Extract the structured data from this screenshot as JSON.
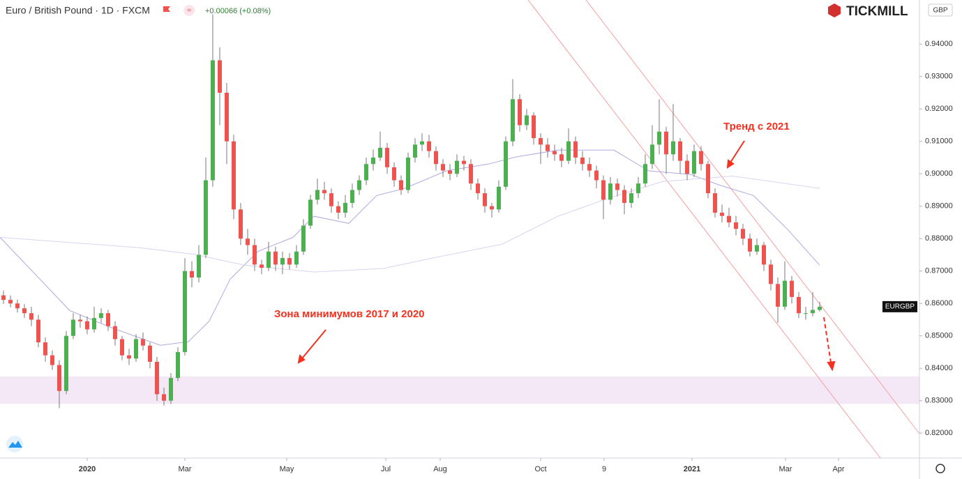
{
  "chart_data": {
    "type": "candlestick",
    "title": "Euro / British Pound · 1D · FXCM",
    "change": "+0.00066 (+0.08%)",
    "brand": "TICKMILL",
    "currency": "GBP",
    "symbol": "EURGBP",
    "annotations": [
      "Тренд с 2021",
      "Зона минимумов 2017 и 2020"
    ],
    "up_color": "#4caf50",
    "down_color": "#ef5350",
    "xlim": [
      -0.5,
      131.3
    ],
    "xticks": [
      {
        "value": 12,
        "label": "2020"
      },
      {
        "value": 26,
        "label": "Mar"
      },
      {
        "value": 40.6,
        "label": "May"
      },
      {
        "value": 54.8,
        "label": "Jul"
      },
      {
        "value": 62.6,
        "label": "Aug"
      },
      {
        "value": 77,
        "label": "Oct"
      },
      {
        "value": 86.1,
        "label": "9"
      },
      {
        "value": 98.7,
        "label": "2021"
      },
      {
        "value": 112.1,
        "label": "Mar"
      },
      {
        "value": 119.7,
        "label": "Apr"
      }
    ],
    "ylim": [
      0.8123,
      0.9536
    ],
    "yticks": [
      {
        "value": 0.82,
        "label": "0.82000"
      },
      {
        "value": 0.83,
        "label": "0.83000"
      },
      {
        "value": 0.84,
        "label": "0.84000"
      },
      {
        "value": 0.85,
        "label": "0.85000"
      },
      {
        "value": 0.86,
        "label": "0.86000"
      },
      {
        "value": 0.87,
        "label": "0.87000"
      },
      {
        "value": 0.88,
        "label": "0.88000"
      },
      {
        "value": 0.89,
        "label": "0.89000"
      },
      {
        "value": 0.9,
        "label": "0.90000"
      },
      {
        "value": 0.91,
        "label": "0.91000"
      },
      {
        "value": 0.92,
        "label": "0.92000"
      },
      {
        "value": 0.93,
        "label": "0.93000"
      },
      {
        "value": 0.94,
        "label": "0.94000"
      }
    ],
    "zone": {
      "low": 0.829,
      "high": 0.8375,
      "color": "#f3e5f5"
    },
    "ohlc": [
      [
        0.8625,
        0.864,
        0.8598,
        0.8611
      ],
      [
        0.8611,
        0.8625,
        0.8588,
        0.86
      ],
      [
        0.86,
        0.8612,
        0.8572,
        0.8585
      ],
      [
        0.8585,
        0.8598,
        0.8555,
        0.857
      ],
      [
        0.857,
        0.859,
        0.853,
        0.855
      ],
      [
        0.855,
        0.8565,
        0.8465,
        0.848
      ],
      [
        0.848,
        0.8495,
        0.842,
        0.844
      ],
      [
        0.844,
        0.8455,
        0.8395,
        0.841
      ],
      [
        0.841,
        0.8425,
        0.8277,
        0.833
      ],
      [
        0.833,
        0.8515,
        0.832,
        0.85
      ],
      [
        0.85,
        0.857,
        0.849,
        0.855
      ],
      [
        0.855,
        0.8565,
        0.8525,
        0.8545
      ],
      [
        0.8545,
        0.856,
        0.8505,
        0.852
      ],
      [
        0.852,
        0.859,
        0.851,
        0.8555
      ],
      [
        0.8555,
        0.8585,
        0.854,
        0.857
      ],
      [
        0.857,
        0.858,
        0.8515,
        0.853
      ],
      [
        0.853,
        0.8545,
        0.847,
        0.849
      ],
      [
        0.849,
        0.85,
        0.8425,
        0.844
      ],
      [
        0.844,
        0.846,
        0.841,
        0.843
      ],
      [
        0.843,
        0.8505,
        0.842,
        0.849
      ],
      [
        0.849,
        0.851,
        0.8455,
        0.847
      ],
      [
        0.847,
        0.848,
        0.84,
        0.842
      ],
      [
        0.842,
        0.8435,
        0.83,
        0.832
      ],
      [
        0.832,
        0.834,
        0.8285,
        0.83
      ],
      [
        0.83,
        0.8385,
        0.829,
        0.837
      ],
      [
        0.837,
        0.8465,
        0.836,
        0.845
      ],
      [
        0.845,
        0.874,
        0.844,
        0.87
      ],
      [
        0.87,
        0.873,
        0.865,
        0.868
      ],
      [
        0.868,
        0.878,
        0.8665,
        0.875
      ],
      [
        0.875,
        0.905,
        0.874,
        0.898
      ],
      [
        0.898,
        0.9492,
        0.896,
        0.935
      ],
      [
        0.935,
        0.939,
        0.915,
        0.925
      ],
      [
        0.925,
        0.928,
        0.903,
        0.91
      ],
      [
        0.91,
        0.912,
        0.886,
        0.889
      ],
      [
        0.889,
        0.891,
        0.878,
        0.88
      ],
      [
        0.88,
        0.883,
        0.875,
        0.878
      ],
      [
        0.878,
        0.88,
        0.87,
        0.872
      ],
      [
        0.872,
        0.8735,
        0.869,
        0.871
      ],
      [
        0.871,
        0.879,
        0.87,
        0.876
      ],
      [
        0.876,
        0.8775,
        0.87,
        0.872
      ],
      [
        0.872,
        0.876,
        0.869,
        0.874
      ],
      [
        0.874,
        0.8755,
        0.8705,
        0.872
      ],
      [
        0.872,
        0.878,
        0.871,
        0.876
      ],
      [
        0.876,
        0.886,
        0.875,
        0.884
      ],
      [
        0.884,
        0.8935,
        0.883,
        0.892
      ],
      [
        0.892,
        0.8985,
        0.8905,
        0.895
      ],
      [
        0.895,
        0.8975,
        0.892,
        0.894
      ],
      [
        0.894,
        0.8955,
        0.888,
        0.89
      ],
      [
        0.89,
        0.8915,
        0.886,
        0.888
      ],
      [
        0.888,
        0.8935,
        0.8865,
        0.891
      ],
      [
        0.891,
        0.897,
        0.8895,
        0.895
      ],
      [
        0.895,
        0.8995,
        0.8935,
        0.898
      ],
      [
        0.898,
        0.905,
        0.8965,
        0.903
      ],
      [
        0.903,
        0.9075,
        0.901,
        0.905
      ],
      [
        0.905,
        0.913,
        0.904,
        0.908
      ],
      [
        0.908,
        0.9095,
        0.9,
        0.902
      ],
      [
        0.902,
        0.9035,
        0.896,
        0.898
      ],
      [
        0.898,
        0.8995,
        0.8935,
        0.895
      ],
      [
        0.895,
        0.9065,
        0.894,
        0.905
      ],
      [
        0.905,
        0.911,
        0.9035,
        0.909
      ],
      [
        0.909,
        0.9125,
        0.907,
        0.91
      ],
      [
        0.91,
        0.912,
        0.905,
        0.907
      ],
      [
        0.907,
        0.9085,
        0.901,
        0.903
      ],
      [
        0.903,
        0.9045,
        0.899,
        0.901
      ],
      [
        0.901,
        0.903,
        0.898,
        0.9
      ],
      [
        0.9,
        0.906,
        0.899,
        0.904
      ],
      [
        0.904,
        0.9055,
        0.901,
        0.903
      ],
      [
        0.903,
        0.9045,
        0.895,
        0.897
      ],
      [
        0.897,
        0.8985,
        0.892,
        0.894
      ],
      [
        0.894,
        0.8955,
        0.888,
        0.89
      ],
      [
        0.89,
        0.891,
        0.8865,
        0.889
      ],
      [
        0.889,
        0.898,
        0.888,
        0.896
      ],
      [
        0.896,
        0.9115,
        0.895,
        0.91
      ],
      [
        0.91,
        0.9292,
        0.9085,
        0.923
      ],
      [
        0.923,
        0.9245,
        0.913,
        0.915
      ],
      [
        0.915,
        0.92,
        0.9135,
        0.918
      ],
      [
        0.918,
        0.919,
        0.909,
        0.911
      ],
      [
        0.911,
        0.9125,
        0.903,
        0.909
      ],
      [
        0.909,
        0.911,
        0.905,
        0.907
      ],
      [
        0.907,
        0.909,
        0.904,
        0.906
      ],
      [
        0.906,
        0.908,
        0.902,
        0.904
      ],
      [
        0.904,
        0.914,
        0.903,
        0.91
      ],
      [
        0.91,
        0.9115,
        0.903,
        0.905
      ],
      [
        0.905,
        0.907,
        0.901,
        0.903
      ],
      [
        0.903,
        0.905,
        0.899,
        0.901
      ],
      [
        0.901,
        0.9025,
        0.8955,
        0.898
      ],
      [
        0.898,
        0.8995,
        0.886,
        0.892
      ],
      [
        0.892,
        0.899,
        0.8905,
        0.897
      ],
      [
        0.897,
        0.8985,
        0.893,
        0.895
      ],
      [
        0.895,
        0.8965,
        0.8875,
        0.891
      ],
      [
        0.891,
        0.8955,
        0.8895,
        0.894
      ],
      [
        0.894,
        0.899,
        0.8925,
        0.897
      ],
      [
        0.897,
        0.906,
        0.896,
        0.903
      ],
      [
        0.903,
        0.915,
        0.9015,
        0.909
      ],
      [
        0.909,
        0.923,
        0.906,
        0.913
      ],
      [
        0.913,
        0.9145,
        0.9,
        0.906
      ],
      [
        0.906,
        0.9215,
        0.904,
        0.91
      ],
      [
        0.91,
        0.911,
        0.9,
        0.904
      ],
      [
        0.904,
        0.906,
        0.898,
        0.9
      ],
      [
        0.9,
        0.909,
        0.899,
        0.907
      ],
      [
        0.907,
        0.9085,
        0.901,
        0.903
      ],
      [
        0.903,
        0.904,
        0.8925,
        0.894
      ],
      [
        0.894,
        0.8955,
        0.8865,
        0.888
      ],
      [
        0.888,
        0.8905,
        0.885,
        0.887
      ],
      [
        0.887,
        0.8895,
        0.8835,
        0.885
      ],
      [
        0.885,
        0.887,
        0.881,
        0.883
      ],
      [
        0.883,
        0.8845,
        0.878,
        0.88
      ],
      [
        0.88,
        0.8815,
        0.8745,
        0.876
      ],
      [
        0.876,
        0.88,
        0.875,
        0.878
      ],
      [
        0.878,
        0.879,
        0.87,
        0.872
      ],
      [
        0.872,
        0.8735,
        0.864,
        0.866
      ],
      [
        0.866,
        0.868,
        0.854,
        0.859
      ],
      [
        0.859,
        0.873,
        0.858,
        0.867
      ],
      [
        0.867,
        0.8685,
        0.86,
        0.862
      ],
      [
        0.862,
        0.8635,
        0.8555,
        0.857
      ],
      [
        0.857,
        0.859,
        0.855,
        0.857
      ],
      [
        0.857,
        0.8635,
        0.856,
        0.858
      ],
      [
        0.858,
        0.8605,
        0.8575,
        0.859
      ]
    ],
    "moving_averages": [
      {
        "color": "#b0a8e0",
        "x": [
          -0.5,
          9.5,
          15.5,
          22.5,
          26.5,
          29.5,
          32.5,
          36.5,
          41.5,
          44.5,
          49.5,
          53.5,
          57.5,
          63.5,
          69.5,
          73.5,
          79.5,
          87.5,
          92.5,
          98.5,
          102.5,
          107.5,
          112.5,
          117
        ],
        "values": [
          0.8804,
          0.8578,
          0.8525,
          0.8471,
          0.8482,
          0.8546,
          0.8675,
          0.8761,
          0.8804,
          0.8869,
          0.8847,
          0.8933,
          0.8955,
          0.9009,
          0.903,
          0.9052,
          0.9073,
          0.9073,
          0.9009,
          0.8998,
          0.8966,
          0.8933,
          0.8826,
          0.8718
        ]
      },
      {
        "color": "#d8d4ee",
        "x": [
          -0.5,
          19.5,
          27.5,
          34.5,
          44.5,
          54.5,
          61.5,
          71.5,
          79.5,
          86.5,
          94.5,
          104.5,
          117
        ],
        "values": [
          0.8804,
          0.8772,
          0.8751,
          0.8718,
          0.8697,
          0.8708,
          0.874,
          0.8783,
          0.8869,
          0.8923,
          0.8976,
          0.8993,
          0.8955
        ]
      }
    ]
  }
}
